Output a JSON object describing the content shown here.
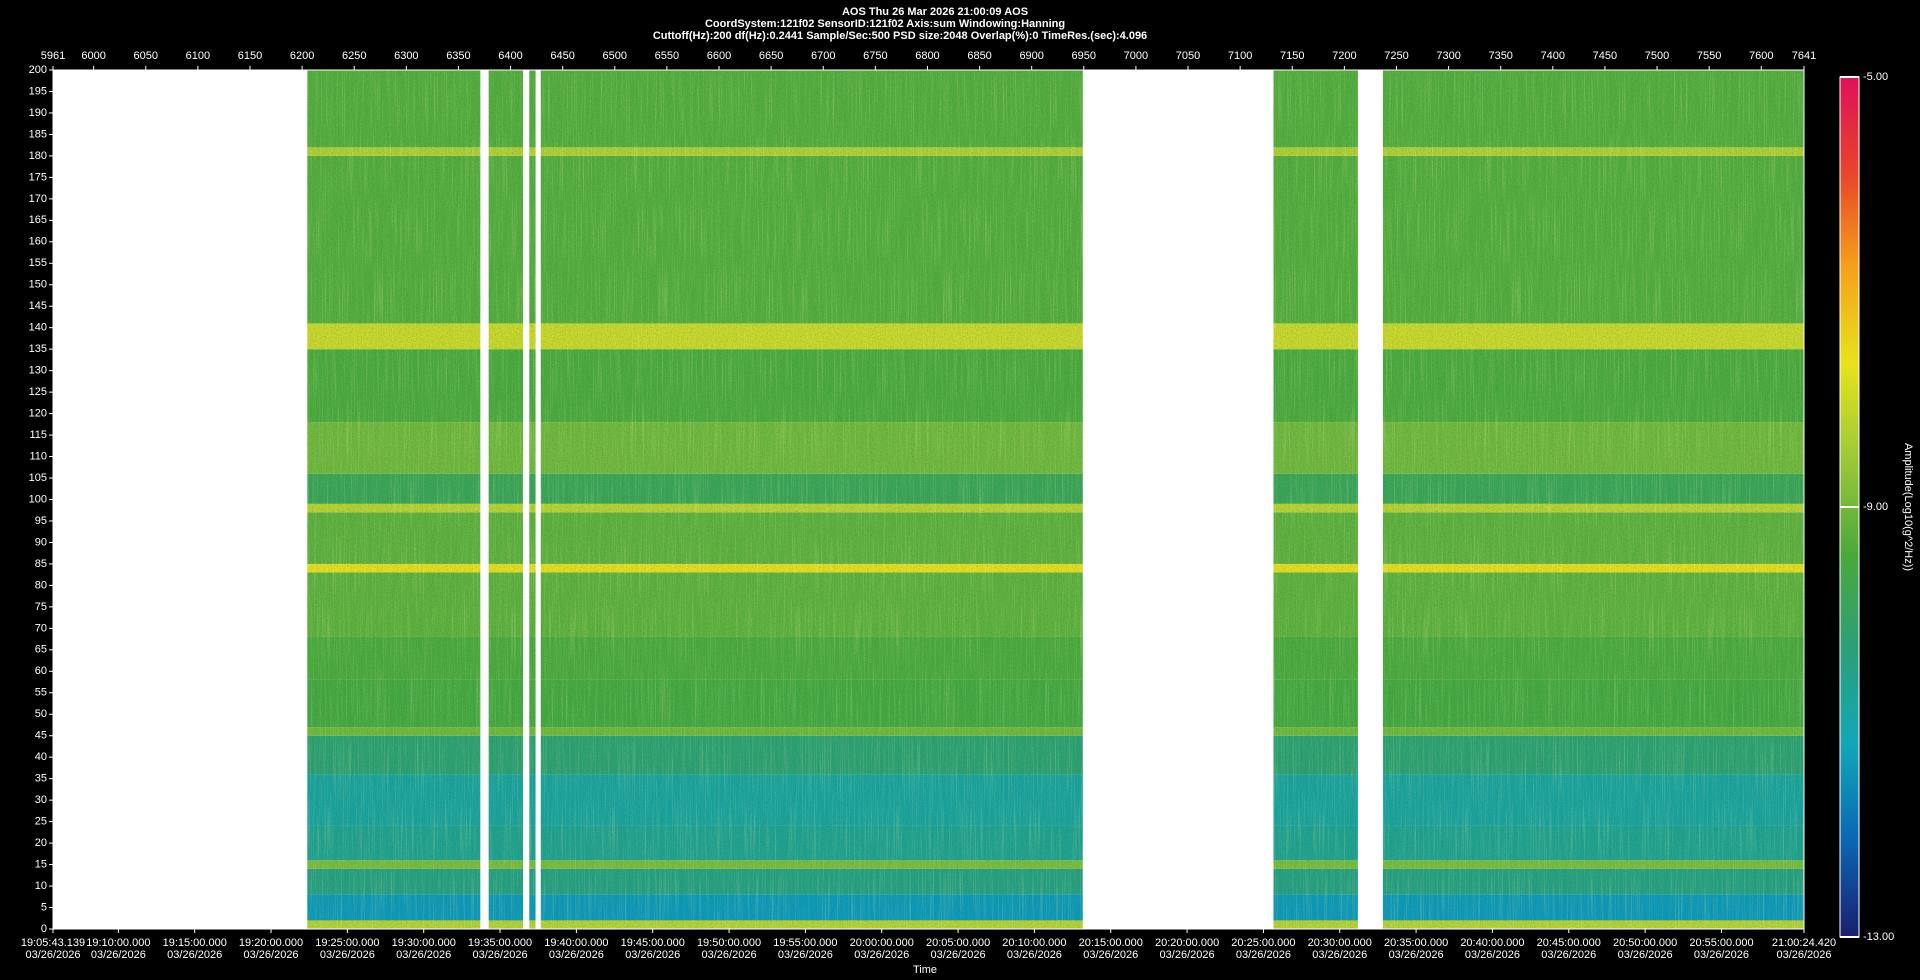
{
  "chart_data": {
    "type": "spectrogram",
    "title_lines": [
      "AOS  Thu 26 Mar 2026 21:00:09  AOS",
      "CoordSystem:121f02    SensorID:121f02    Axis:sum    Windowing:Hanning",
      "Cuttoff(Hz):200     df(Hz):0.2441     Sample/Sec:500     PSD size:2048     Overlap(%):0     TimeRes.(sec):4.096"
    ],
    "x_label": "Time",
    "colorbar_label": "Amplitude(Log10(g^2/Hz))",
    "xlim": [
      5961,
      7641
    ],
    "xticks": [
      5961,
      6000,
      6050,
      6100,
      6150,
      6200,
      6250,
      6300,
      6350,
      6400,
      6450,
      6500,
      6550,
      6600,
      6650,
      6700,
      6750,
      6800,
      6850,
      6900,
      6950,
      7000,
      7050,
      7100,
      7150,
      7200,
      7250,
      7300,
      7350,
      7400,
      7450,
      7500,
      7550,
      7600,
      7641
    ],
    "x2lim": [
      68743.139,
      75624.42
    ],
    "x2ticks": [
      {
        "value": 68743.139,
        "label": "19:05:43.139",
        "date": "03/26/2026"
      },
      {
        "value": 69000,
        "label": "19:10:00.000",
        "date": "03/26/2026"
      },
      {
        "value": 69300,
        "label": "19:15:00.000",
        "date": "03/26/2026"
      },
      {
        "value": 69600,
        "label": "19:20:00.000",
        "date": "03/26/2026"
      },
      {
        "value": 69900,
        "label": "19:25:00.000",
        "date": "03/26/2026"
      },
      {
        "value": 70200,
        "label": "19:30:00.000",
        "date": "03/26/2026"
      },
      {
        "value": 70500,
        "label": "19:35:00.000",
        "date": "03/26/2026"
      },
      {
        "value": 70800,
        "label": "19:40:00.000",
        "date": "03/26/2026"
      },
      {
        "value": 71100,
        "label": "19:45:00.000",
        "date": "03/26/2026"
      },
      {
        "value": 71400,
        "label": "19:50:00.000",
        "date": "03/26/2026"
      },
      {
        "value": 71700,
        "label": "19:55:00.000",
        "date": "03/26/2026"
      },
      {
        "value": 72000,
        "label": "20:00:00.000",
        "date": "03/26/2026"
      },
      {
        "value": 72300,
        "label": "20:05:00.000",
        "date": "03/26/2026"
      },
      {
        "value": 72600,
        "label": "20:10:00.000",
        "date": "03/26/2026"
      },
      {
        "value": 72900,
        "label": "20:15:00.000",
        "date": "03/26/2026"
      },
      {
        "value": 73200,
        "label": "20:20:00.000",
        "date": "03/26/2026"
      },
      {
        "value": 73500,
        "label": "20:25:00.000",
        "date": "03/26/2026"
      },
      {
        "value": 73800,
        "label": "20:30:00.000",
        "date": "03/26/2026"
      },
      {
        "value": 74100,
        "label": "20:35:00.000",
        "date": "03/26/2026"
      },
      {
        "value": 74400,
        "label": "20:40:00.000",
        "date": "03/26/2026"
      },
      {
        "value": 74700,
        "label": "20:45:00.000",
        "date": "03/26/2026"
      },
      {
        "value": 75000,
        "label": "20:50:00.000",
        "date": "03/26/2026"
      },
      {
        "value": 75300,
        "label": "20:55:00.000",
        "date": "03/26/2026"
      },
      {
        "value": 75624.42,
        "label": "21:00:24.420",
        "date": "03/26/2026"
      }
    ],
    "ylim": [
      0,
      200
    ],
    "yticks": [
      0,
      5,
      10,
      15,
      20,
      25,
      30,
      35,
      40,
      45,
      50,
      55,
      60,
      65,
      70,
      75,
      80,
      85,
      90,
      95,
      100,
      105,
      110,
      115,
      120,
      125,
      130,
      135,
      140,
      145,
      150,
      155,
      160,
      165,
      170,
      175,
      180,
      185,
      190,
      195,
      200
    ],
    "data_segments": [
      [
        6205,
        6371
      ],
      [
        6379,
        6412
      ],
      [
        6418,
        6424
      ],
      [
        6429,
        6949
      ],
      [
        7132,
        7213
      ],
      [
        7237,
        7641
      ]
    ],
    "band_edges": [
      0,
      2,
      8,
      14,
      16,
      24,
      36,
      45,
      47,
      58,
      68,
      83,
      85,
      97,
      99,
      106,
      118,
      135,
      141,
      180,
      182,
      200
    ],
    "band_values": [
      -8.2,
      -11.4,
      -10.4,
      -8.9,
      -10.6,
      -10.8,
      -10.2,
      -9.0,
      -9.5,
      -9.4,
      -9.2,
      -7.6,
      -9.2,
      -8.2,
      -9.8,
      -9.0,
      -9.4,
      -8.0,
      -9.3,
      -8.3,
      -9.3
    ],
    "clim": [
      -13,
      -5
    ],
    "cticks": [
      {
        "value": -13,
        "label": "-13.00"
      },
      {
        "value": -9,
        "label": "-9.00"
      },
      {
        "value": -5,
        "label": "-5.00"
      }
    ],
    "colormap": [
      "#1a1f6e",
      "#0a66b3",
      "#12a6b8",
      "#2aa07a",
      "#4aa83a",
      "#9cc83a",
      "#e8e21a",
      "#f5a21a",
      "#e8442a",
      "#e0105a"
    ]
  }
}
